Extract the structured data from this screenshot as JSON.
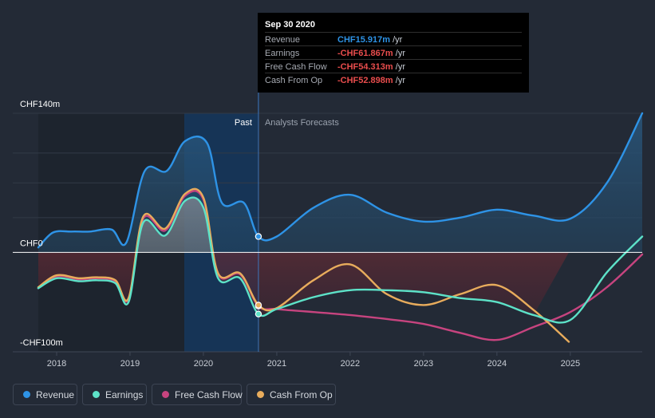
{
  "tooltip": {
    "date": "Sep 30 2020",
    "rows": [
      {
        "label": "Revenue",
        "value": "CHF15.917m",
        "unit": "/yr",
        "color": "#2e93e6"
      },
      {
        "label": "Earnings",
        "value": "-CHF61.867m",
        "unit": "/yr",
        "color": "#e94d4d"
      },
      {
        "label": "Free Cash Flow",
        "value": "-CHF54.313m",
        "unit": "/yr",
        "color": "#e94d4d"
      },
      {
        "label": "Cash From Op",
        "value": "-CHF52.898m",
        "unit": "/yr",
        "color": "#e94d4d"
      }
    ]
  },
  "legend": [
    {
      "label": "Revenue",
      "color": "#2e93e6"
    },
    {
      "label": "Earnings",
      "color": "#5de2c8"
    },
    {
      "label": "Free Cash Flow",
      "color": "#c7447f"
    },
    {
      "label": "Cash From Op",
      "color": "#e8ac5c"
    }
  ],
  "chart_data": {
    "type": "line",
    "y_tick_labels": [
      "CHF140m",
      "CHF0",
      "-CHF100m"
    ],
    "ylim": [
      -100,
      140
    ],
    "xlim": [
      2017.75,
      2025.98
    ],
    "x_ticks": [
      2018,
      2019,
      2020,
      2021,
      2022,
      2023,
      2024,
      2025
    ],
    "x_tick_labels": [
      "2018",
      "2019",
      "2020",
      "2021",
      "2022",
      "2023",
      "2024",
      "2025"
    ],
    "past_label": "Past",
    "forecast_label": "Analysts Forecasts",
    "divider_x": 2020.75,
    "highlight_range": [
      2019.75,
      2020.75
    ],
    "series": [
      {
        "name": "Revenue",
        "color": "#2e93e6",
        "points": [
          [
            2017.75,
            5
          ],
          [
            2017.95,
            20
          ],
          [
            2018.2,
            21
          ],
          [
            2018.45,
            21
          ],
          [
            2018.75,
            23
          ],
          [
            2018.95,
            10
          ],
          [
            2019.2,
            82
          ],
          [
            2019.5,
            82
          ],
          [
            2019.75,
            112
          ],
          [
            2020.05,
            110
          ],
          [
            2020.25,
            50
          ],
          [
            2020.55,
            50
          ],
          [
            2020.75,
            16
          ],
          [
            2021.0,
            16
          ],
          [
            2021.5,
            45
          ],
          [
            2022.0,
            58
          ],
          [
            2022.5,
            40
          ],
          [
            2023.0,
            31
          ],
          [
            2023.5,
            35
          ],
          [
            2024.0,
            43
          ],
          [
            2024.5,
            37
          ],
          [
            2025.0,
            34
          ],
          [
            2025.5,
            70
          ],
          [
            2025.98,
            140
          ]
        ]
      },
      {
        "name": "Earnings",
        "color": "#5de2c8",
        "points": [
          [
            2017.75,
            -36
          ],
          [
            2018.0,
            -26
          ],
          [
            2018.3,
            -29
          ],
          [
            2018.55,
            -28
          ],
          [
            2018.8,
            -31
          ],
          [
            2018.98,
            -50
          ],
          [
            2019.18,
            30
          ],
          [
            2019.48,
            17
          ],
          [
            2019.75,
            52
          ],
          [
            2020.0,
            45
          ],
          [
            2020.2,
            -26
          ],
          [
            2020.5,
            -26
          ],
          [
            2020.75,
            -62
          ],
          [
            2021.0,
            -57
          ],
          [
            2021.5,
            -45
          ],
          [
            2022.0,
            -38
          ],
          [
            2022.5,
            -38
          ],
          [
            2023.0,
            -40
          ],
          [
            2023.5,
            -46
          ],
          [
            2024.0,
            -50
          ],
          [
            2024.5,
            -63
          ],
          [
            2025.0,
            -68
          ],
          [
            2025.5,
            -20
          ],
          [
            2025.98,
            16
          ]
        ]
      },
      {
        "name": "Free Cash Flow",
        "color": "#c7447f",
        "points": [
          [
            2017.75,
            -36
          ],
          [
            2018.0,
            -24
          ],
          [
            2018.3,
            -27
          ],
          [
            2018.55,
            -26
          ],
          [
            2018.8,
            -29
          ],
          [
            2018.98,
            -47
          ],
          [
            2019.18,
            34
          ],
          [
            2019.48,
            22
          ],
          [
            2019.75,
            57
          ],
          [
            2020.0,
            53
          ],
          [
            2020.2,
            -22
          ],
          [
            2020.5,
            -22
          ],
          [
            2020.75,
            -54
          ],
          [
            2021.0,
            -57
          ],
          [
            2021.5,
            -60
          ],
          [
            2022.0,
            -63
          ],
          [
            2022.5,
            -67
          ],
          [
            2023.0,
            -72
          ],
          [
            2023.5,
            -81
          ],
          [
            2024.0,
            -88
          ],
          [
            2024.5,
            -75
          ],
          [
            2025.0,
            -60
          ],
          [
            2025.5,
            -35
          ],
          [
            2025.98,
            -2
          ]
        ]
      },
      {
        "name": "Cash From Op",
        "color": "#e8ac5c",
        "points": [
          [
            2017.75,
            -35
          ],
          [
            2018.0,
            -23
          ],
          [
            2018.3,
            -26
          ],
          [
            2018.55,
            -25
          ],
          [
            2018.8,
            -28
          ],
          [
            2018.98,
            -46
          ],
          [
            2019.18,
            36
          ],
          [
            2019.48,
            24
          ],
          [
            2019.75,
            59
          ],
          [
            2020.0,
            55
          ],
          [
            2020.2,
            -21
          ],
          [
            2020.5,
            -21
          ],
          [
            2020.75,
            -53
          ],
          [
            2021.0,
            -56
          ],
          [
            2021.5,
            -28
          ],
          [
            2022.0,
            -12
          ],
          [
            2022.5,
            -42
          ],
          [
            2023.0,
            -53
          ],
          [
            2023.5,
            -42
          ],
          [
            2024.0,
            -33
          ],
          [
            2024.5,
            -58
          ],
          [
            2024.98,
            -90
          ]
        ]
      }
    ],
    "markers": [
      {
        "series": "Revenue",
        "x": 2020.75,
        "y": 16
      },
      {
        "series": "Earnings",
        "x": 2020.75,
        "y": -62
      },
      {
        "series": "Free Cash Flow",
        "x": 2020.75,
        "y": -54
      },
      {
        "series": "Cash From Op",
        "x": 2020.75,
        "y": -53
      }
    ]
  }
}
